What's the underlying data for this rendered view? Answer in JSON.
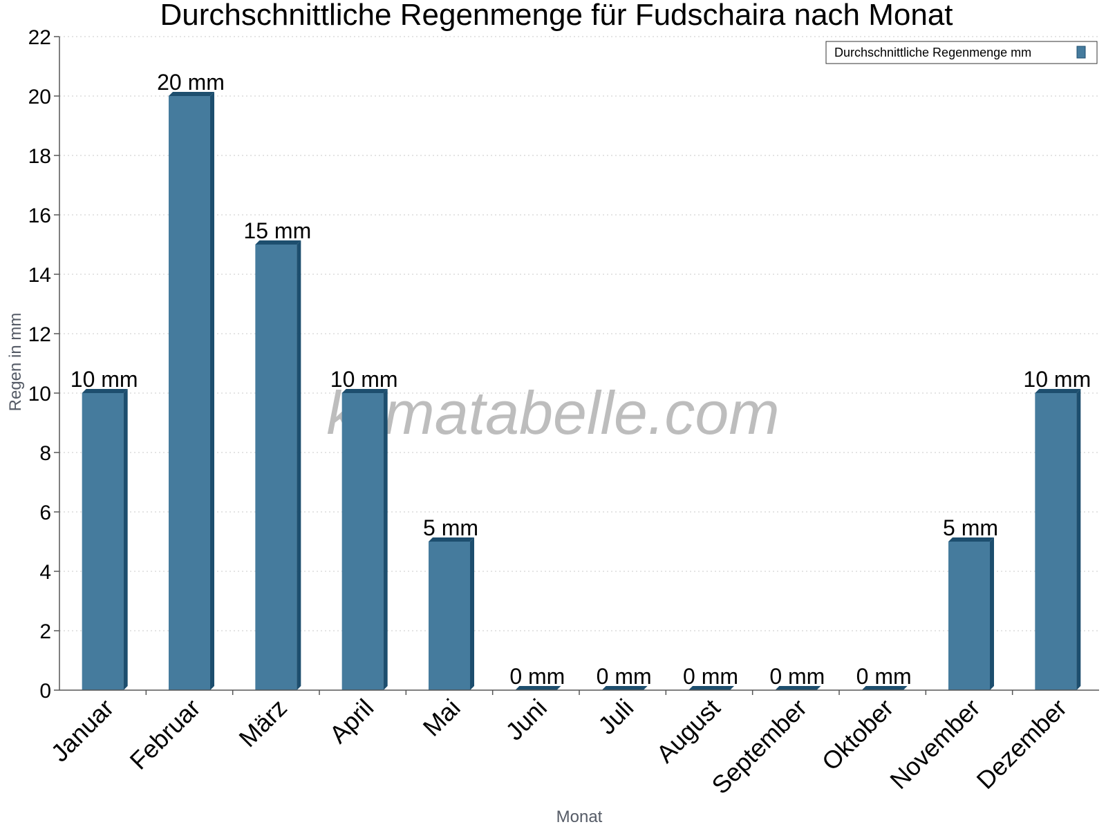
{
  "chart_data": {
    "type": "bar",
    "title": "Durchschnittliche Regenmenge für Fudschaira nach Monat",
    "xlabel": "Monat",
    "ylabel": "Regen in mm",
    "ylim": [
      0,
      22
    ],
    "yticks": [
      0,
      2,
      4,
      6,
      8,
      10,
      12,
      14,
      16,
      18,
      20,
      22
    ],
    "grid": "horizontal dotted",
    "legend_position": "top-right",
    "categories": [
      "Januar",
      "Februar",
      "März",
      "April",
      "Mai",
      "Juni",
      "Juli",
      "August",
      "September",
      "Oktober",
      "November",
      "Dezember"
    ],
    "series": [
      {
        "name": "Durchschnittliche Regenmenge mm",
        "values": [
          10,
          20,
          15,
          10,
          5,
          0,
          0,
          0,
          0,
          0,
          5,
          10
        ],
        "labels": [
          "10 mm",
          "20 mm",
          "15 mm",
          "10 mm",
          "5 mm",
          "0 mm",
          "0 mm",
          "0 mm",
          "0 mm",
          "0 mm",
          "5 mm",
          "10 mm"
        ],
        "color": "#457b9d",
        "side_color": "#1d4e6e"
      }
    ]
  },
  "watermark": "klimatabelle.com"
}
